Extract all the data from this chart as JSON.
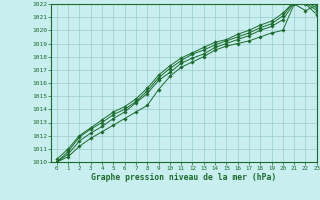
{
  "title": "Graphe pression niveau de la mer (hPa)",
  "bg_color": "#c8eef0",
  "grid_color": "#98cccc",
  "line_color": "#1a6b2a",
  "xlim": [
    -0.5,
    23
  ],
  "ylim": [
    1010,
    1022
  ],
  "yticks": [
    1010,
    1011,
    1012,
    1013,
    1014,
    1015,
    1016,
    1017,
    1018,
    1019,
    1020,
    1021,
    1022
  ],
  "xticks": [
    0,
    1,
    2,
    3,
    4,
    5,
    6,
    7,
    8,
    9,
    10,
    11,
    12,
    13,
    14,
    15,
    16,
    17,
    18,
    19,
    20,
    21,
    22,
    23
  ],
  "series": [
    [
      1010.0,
      1010.4,
      1011.2,
      1011.8,
      1012.3,
      1012.8,
      1013.3,
      1013.8,
      1014.3,
      1015.5,
      1016.5,
      1017.2,
      1017.6,
      1018.0,
      1018.5,
      1018.8,
      1019.0,
      1019.2,
      1019.5,
      1019.8,
      1020.0,
      1022.0,
      1021.5,
      1021.9
    ],
    [
      1010.0,
      1010.6,
      1011.6,
      1012.2,
      1012.7,
      1013.3,
      1013.8,
      1014.5,
      1015.2,
      1016.2,
      1016.8,
      1017.5,
      1017.9,
      1018.2,
      1018.7,
      1019.0,
      1019.3,
      1019.6,
      1020.0,
      1020.3,
      1020.8,
      1022.1,
      1022.0,
      1021.2
    ],
    [
      1010.0,
      1010.8,
      1011.9,
      1012.5,
      1013.0,
      1013.6,
      1014.0,
      1014.6,
      1015.4,
      1016.4,
      1017.1,
      1017.7,
      1018.2,
      1018.5,
      1018.9,
      1019.2,
      1019.5,
      1019.8,
      1020.2,
      1020.5,
      1021.1,
      1022.2,
      1022.1,
      1021.5
    ],
    [
      1010.2,
      1011.0,
      1012.0,
      1012.6,
      1013.2,
      1013.8,
      1014.2,
      1014.8,
      1015.6,
      1016.6,
      1017.3,
      1017.9,
      1018.3,
      1018.7,
      1019.1,
      1019.3,
      1019.7,
      1020.0,
      1020.4,
      1020.7,
      1021.3,
      1022.2,
      1022.2,
      1021.7
    ]
  ]
}
